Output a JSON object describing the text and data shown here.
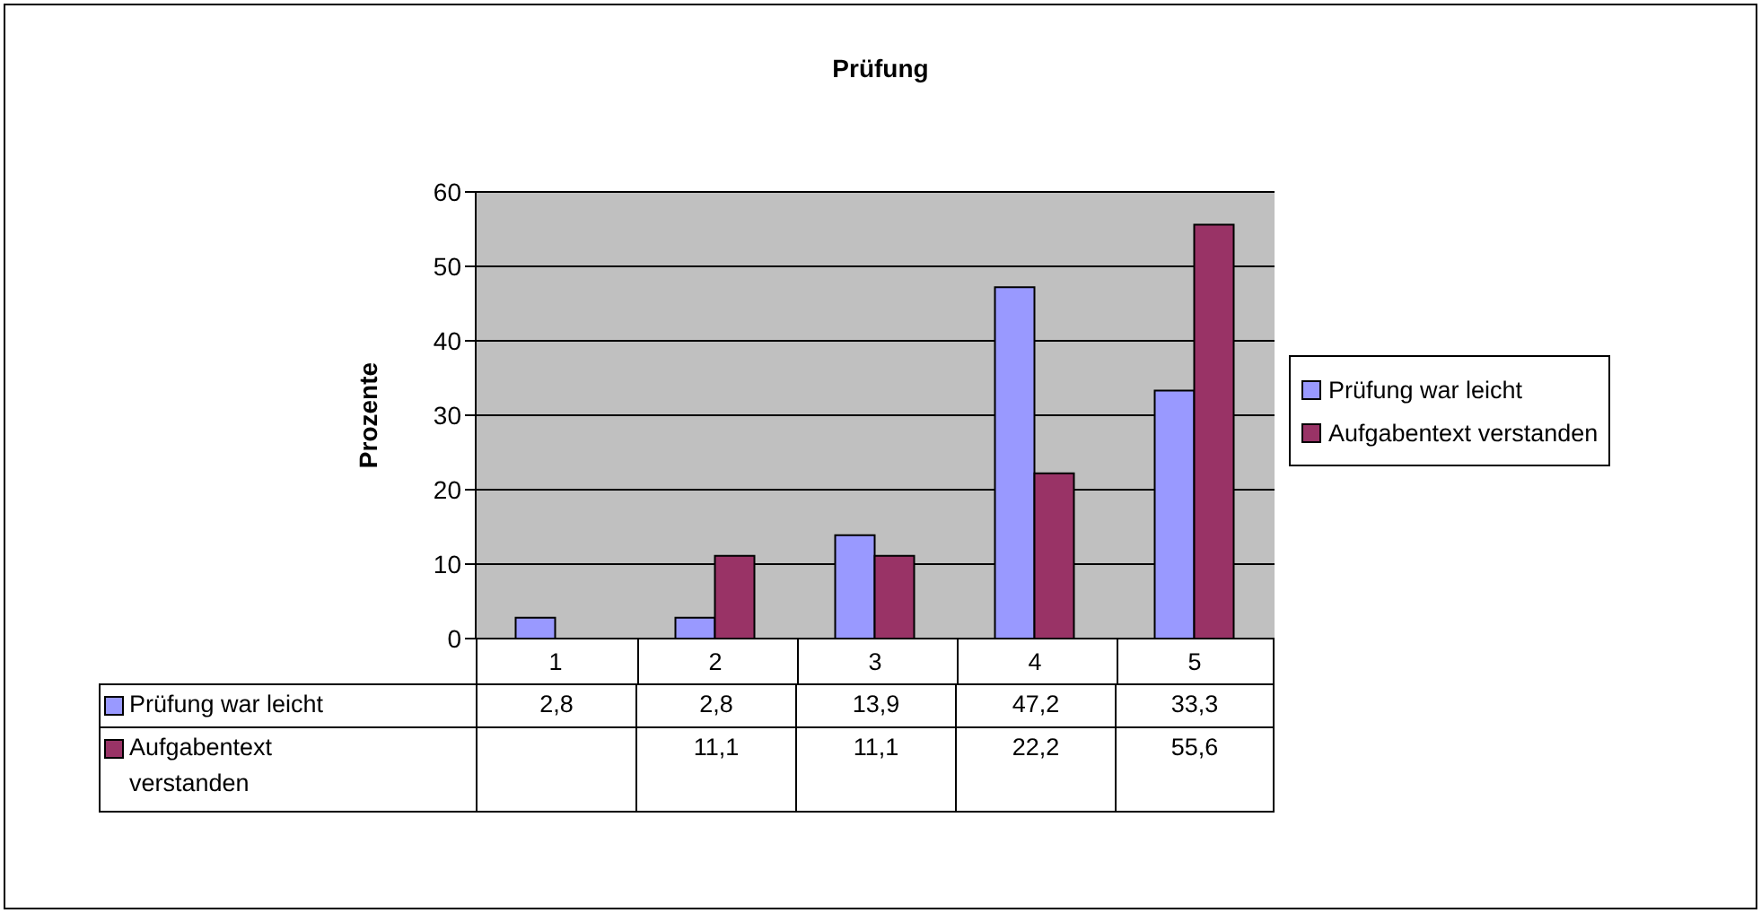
{
  "chart_data": {
    "type": "bar",
    "title": "Prüfung",
    "ylabel": "Prozente",
    "categories": [
      "1",
      "2",
      "3",
      "4",
      "5"
    ],
    "series": [
      {
        "name": "Prüfung war leicht",
        "color": "#9999ff",
        "values": [
          2.8,
          2.8,
          13.9,
          47.2,
          33.3
        ],
        "value_labels": [
          "2,8",
          "2,8",
          "13,9",
          "47,2",
          "33,3"
        ]
      },
      {
        "name": "Aufgabentext verstanden",
        "color": "#993366",
        "values": [
          null,
          11.1,
          11.1,
          22.2,
          55.6
        ],
        "value_labels": [
          null,
          "11,1",
          "11,1",
          "22,2",
          "55,6"
        ]
      }
    ],
    "ylim": [
      0,
      60
    ],
    "yticks": [
      0,
      10,
      20,
      30,
      40,
      50,
      60
    ],
    "grid": "y",
    "legend": "right"
  }
}
